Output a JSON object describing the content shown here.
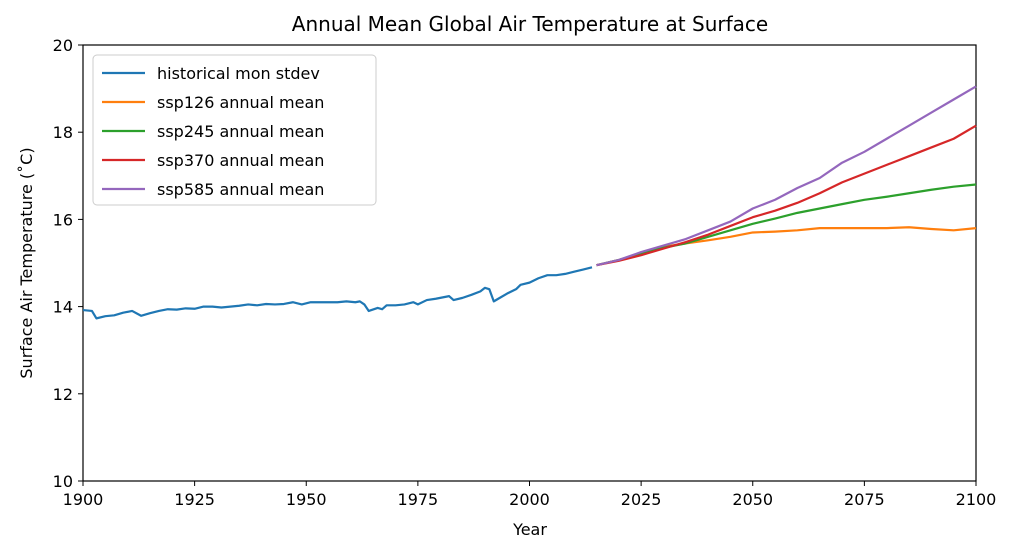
{
  "chart_data": {
    "type": "line",
    "title": "Annual Mean Global Air Temperature at Surface",
    "xlabel": "Year",
    "ylabel": "Surface Air Temperature (˚C)",
    "xlim": [
      1900,
      2100
    ],
    "ylim": [
      10,
      20
    ],
    "xticks": [
      1900,
      1925,
      1950,
      1975,
      2000,
      2025,
      2050,
      2075,
      2100
    ],
    "yticks": [
      10,
      12,
      14,
      16,
      18,
      20
    ],
    "grid": false,
    "legend_placement": "top-left",
    "series": [
      {
        "name": "historical mon stdev",
        "color": "#1f77b4",
        "points": [
          [
            1900,
            13.92
          ],
          [
            1902,
            13.9
          ],
          [
            1903,
            13.73
          ],
          [
            1905,
            13.78
          ],
          [
            1907,
            13.8
          ],
          [
            1909,
            13.86
          ],
          [
            1911,
            13.9
          ],
          [
            1913,
            13.79
          ],
          [
            1915,
            13.85
          ],
          [
            1917,
            13.9
          ],
          [
            1919,
            13.94
          ],
          [
            1921,
            13.93
          ],
          [
            1923,
            13.96
          ],
          [
            1925,
            13.95
          ],
          [
            1927,
            14.0
          ],
          [
            1929,
            14.0
          ],
          [
            1931,
            13.98
          ],
          [
            1933,
            14.0
          ],
          [
            1935,
            14.02
          ],
          [
            1937,
            14.05
          ],
          [
            1939,
            14.03
          ],
          [
            1941,
            14.06
          ],
          [
            1943,
            14.05
          ],
          [
            1945,
            14.06
          ],
          [
            1947,
            14.1
          ],
          [
            1949,
            14.05
          ],
          [
            1951,
            14.1
          ],
          [
            1953,
            14.1
          ],
          [
            1955,
            14.1
          ],
          [
            1957,
            14.1
          ],
          [
            1959,
            14.12
          ],
          [
            1961,
            14.1
          ],
          [
            1962,
            14.12
          ],
          [
            1963,
            14.05
          ],
          [
            1964,
            13.9
          ],
          [
            1966,
            13.97
          ],
          [
            1967,
            13.94
          ],
          [
            1968,
            14.03
          ],
          [
            1970,
            14.03
          ],
          [
            1972,
            14.05
          ],
          [
            1974,
            14.1
          ],
          [
            1975,
            14.05
          ],
          [
            1977,
            14.15
          ],
          [
            1979,
            14.18
          ],
          [
            1981,
            14.22
          ],
          [
            1982,
            14.24
          ],
          [
            1983,
            14.15
          ],
          [
            1985,
            14.2
          ],
          [
            1987,
            14.27
          ],
          [
            1989,
            14.35
          ],
          [
            1990,
            14.43
          ],
          [
            1991,
            14.4
          ],
          [
            1992,
            14.12
          ],
          [
            1993,
            14.18
          ],
          [
            1995,
            14.3
          ],
          [
            1997,
            14.4
          ],
          [
            1998,
            14.5
          ],
          [
            2000,
            14.55
          ],
          [
            2002,
            14.65
          ],
          [
            2004,
            14.72
          ],
          [
            2006,
            14.72
          ],
          [
            2008,
            14.75
          ],
          [
            2010,
            14.8
          ],
          [
            2012,
            14.85
          ],
          [
            2014,
            14.9
          ]
        ]
      },
      {
        "name": "ssp126 annual mean",
        "color": "#ff7f0e",
        "points": [
          [
            2015,
            14.95
          ],
          [
            2020,
            15.07
          ],
          [
            2025,
            15.22
          ],
          [
            2030,
            15.37
          ],
          [
            2035,
            15.45
          ],
          [
            2040,
            15.52
          ],
          [
            2045,
            15.6
          ],
          [
            2050,
            15.7
          ],
          [
            2055,
            15.72
          ],
          [
            2060,
            15.75
          ],
          [
            2065,
            15.8
          ],
          [
            2070,
            15.8
          ],
          [
            2075,
            15.8
          ],
          [
            2080,
            15.8
          ],
          [
            2085,
            15.82
          ],
          [
            2090,
            15.78
          ],
          [
            2095,
            15.75
          ],
          [
            2100,
            15.8
          ]
        ]
      },
      {
        "name": "ssp245 annual mean",
        "color": "#2ca02c",
        "points": [
          [
            2015,
            14.95
          ],
          [
            2020,
            15.07
          ],
          [
            2025,
            15.22
          ],
          [
            2030,
            15.35
          ],
          [
            2035,
            15.45
          ],
          [
            2040,
            15.6
          ],
          [
            2045,
            15.75
          ],
          [
            2050,
            15.9
          ],
          [
            2055,
            16.02
          ],
          [
            2060,
            16.15
          ],
          [
            2065,
            16.25
          ],
          [
            2070,
            16.35
          ],
          [
            2075,
            16.45
          ],
          [
            2080,
            16.52
          ],
          [
            2085,
            16.6
          ],
          [
            2090,
            16.68
          ],
          [
            2095,
            16.75
          ],
          [
            2100,
            16.8
          ]
        ]
      },
      {
        "name": "ssp370 annual mean",
        "color": "#d62728",
        "points": [
          [
            2015,
            14.95
          ],
          [
            2020,
            15.05
          ],
          [
            2025,
            15.18
          ],
          [
            2030,
            15.33
          ],
          [
            2035,
            15.48
          ],
          [
            2040,
            15.65
          ],
          [
            2045,
            15.85
          ],
          [
            2050,
            16.05
          ],
          [
            2055,
            16.2
          ],
          [
            2060,
            16.38
          ],
          [
            2065,
            16.6
          ],
          [
            2070,
            16.85
          ],
          [
            2075,
            17.05
          ],
          [
            2080,
            17.25
          ],
          [
            2085,
            17.45
          ],
          [
            2090,
            17.65
          ],
          [
            2095,
            17.85
          ],
          [
            2100,
            18.15
          ]
        ]
      },
      {
        "name": "ssp585 annual mean",
        "color": "#9467bd",
        "points": [
          [
            2015,
            14.95
          ],
          [
            2020,
            15.07
          ],
          [
            2025,
            15.25
          ],
          [
            2030,
            15.4
          ],
          [
            2035,
            15.55
          ],
          [
            2040,
            15.75
          ],
          [
            2045,
            15.95
          ],
          [
            2050,
            16.25
          ],
          [
            2055,
            16.45
          ],
          [
            2060,
            16.72
          ],
          [
            2065,
            16.95
          ],
          [
            2070,
            17.3
          ],
          [
            2075,
            17.55
          ],
          [
            2080,
            17.85
          ],
          [
            2085,
            18.15
          ],
          [
            2090,
            18.45
          ],
          [
            2095,
            18.75
          ],
          [
            2100,
            19.05
          ]
        ]
      }
    ]
  }
}
